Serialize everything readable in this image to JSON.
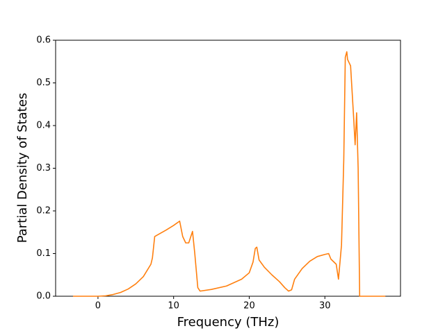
{
  "chart_data": {
    "type": "line",
    "x_label": "Frequency (THz)",
    "y_label": "Partial Density of States",
    "x": [
      -3.3,
      0,
      1,
      2,
      3,
      4,
      5,
      6,
      7,
      7.2,
      7.5,
      8,
      9,
      10,
      10.8,
      11.2,
      11.6,
      12,
      12.5,
      12.8,
      13.2,
      13.5,
      15,
      17,
      19,
      20,
      20.5,
      20.8,
      21,
      21.3,
      22,
      23,
      24,
      24.7,
      25.2,
      25.6,
      26,
      27,
      28,
      29,
      30,
      30.5,
      30.8,
      31.5,
      31.8,
      32.2,
      32.5,
      32.7,
      32.9,
      33,
      33.4,
      33.8,
      34,
      34.2,
      34.4,
      34.6,
      38
    ],
    "series": [
      {
        "color": "#ff7f0e",
        "values": [
          0,
          0,
          0.001,
          0.004,
          0.009,
          0.017,
          0.029,
          0.046,
          0.075,
          0.09,
          0.14,
          0.145,
          0.155,
          0.166,
          0.176,
          0.14,
          0.125,
          0.125,
          0.152,
          0.1,
          0.02,
          0.012,
          0.016,
          0.024,
          0.04,
          0.055,
          0.08,
          0.112,
          0.115,
          0.085,
          0.068,
          0.05,
          0.034,
          0.02,
          0.012,
          0.015,
          0.04,
          0.065,
          0.082,
          0.093,
          0.098,
          0.1,
          0.087,
          0.075,
          0.04,
          0.12,
          0.32,
          0.56,
          0.573,
          0.555,
          0.54,
          0.42,
          0.355,
          0.43,
          0.3,
          0,
          0
        ]
      }
    ],
    "xlim": [
      -5.6,
      40
    ],
    "ylim": [
      0,
      0.6
    ],
    "xticks": [
      0,
      10,
      20,
      30
    ],
    "yticks": [
      {
        "value": 0,
        "label": "0.0"
      },
      0.1,
      0.2,
      0.3,
      0.4,
      0.5,
      0.6
    ]
  }
}
